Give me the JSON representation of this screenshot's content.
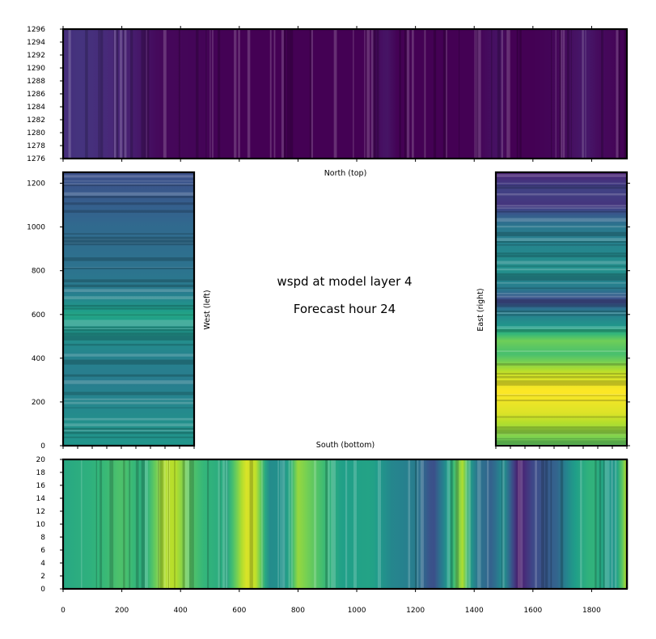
{
  "figure": {
    "title_line1": "wspd at model layer 4",
    "title_line2": "Forecast hour 24",
    "colormap": "viridis",
    "colormap_stops": [
      "#440154",
      "#482878",
      "#3e4a89",
      "#31688e",
      "#26828e",
      "#1f9e89",
      "#35b779",
      "#6ece58",
      "#b5de2b",
      "#fde725"
    ]
  },
  "chart_data": [
    {
      "type": "heatmap",
      "panel": "north",
      "caption": "North (top)",
      "x_range": [
        0,
        1920
      ],
      "y_range": [
        1276,
        1296
      ],
      "x_ticks": [
        0,
        200,
        400,
        600,
        800,
        1000,
        1200,
        1400,
        1600,
        1800
      ],
      "x_tick_labels_shown": false,
      "y_ticks": [
        1276,
        1278,
        1280,
        1282,
        1284,
        1286,
        1288,
        1290,
        1292,
        1294,
        1296
      ],
      "y_tick_labels": [
        "1276",
        "1278",
        "1280",
        "1282",
        "1284",
        "1286",
        "1288",
        "1290",
        "1292",
        "1294",
        "1296"
      ],
      "profile": [
        [
          0,
          0.13
        ],
        [
          60,
          0.15
        ],
        [
          140,
          0.12
        ],
        [
          220,
          0.09
        ],
        [
          280,
          0.05
        ],
        [
          330,
          0.02
        ],
        [
          600,
          0.0
        ],
        [
          1050,
          0.0
        ],
        [
          1100,
          0.06
        ],
        [
          1140,
          0.0
        ],
        [
          1400,
          0.0
        ],
        [
          1480,
          0.05
        ],
        [
          1520,
          0.0
        ],
        [
          1600,
          0.0
        ],
        [
          1700,
          0.02
        ],
        [
          1780,
          0.07
        ],
        [
          1820,
          0.03
        ],
        [
          1920,
          0.0
        ]
      ],
      "value_range": [
        0,
        1
      ]
    },
    {
      "type": "heatmap",
      "panel": "west",
      "caption": "West (left)",
      "x_range": [
        0,
        450
      ],
      "y_range": [
        0,
        1250
      ],
      "x_ticks": [
        0,
        50,
        100,
        150,
        200,
        250,
        300,
        350,
        400,
        450
      ],
      "x_tick_labels_shown": false,
      "y_ticks": [
        0,
        200,
        400,
        600,
        800,
        1000,
        1200
      ],
      "y_tick_labels": [
        "0",
        "200",
        "400",
        "600",
        "800",
        "1000",
        "1200"
      ],
      "profile": [
        [
          0,
          0.52
        ],
        [
          100,
          0.5
        ],
        [
          200,
          0.46
        ],
        [
          300,
          0.42
        ],
        [
          400,
          0.44
        ],
        [
          500,
          0.5
        ],
        [
          600,
          0.58
        ],
        [
          700,
          0.42
        ],
        [
          800,
          0.38
        ],
        [
          900,
          0.36
        ],
        [
          1000,
          0.34
        ],
        [
          1100,
          0.3
        ],
        [
          1200,
          0.26
        ],
        [
          1250,
          0.24
        ]
      ],
      "value_range": [
        0,
        1
      ]
    },
    {
      "type": "heatmap",
      "panel": "east",
      "caption": "East (right)",
      "x_range": [
        0,
        450
      ],
      "y_range": [
        0,
        1250
      ],
      "x_ticks": [
        0,
        50,
        100,
        150,
        200,
        250,
        300,
        350,
        400,
        450
      ],
      "x_tick_labels_shown": false,
      "y_ticks": [
        0,
        200,
        400,
        600,
        800,
        1000,
        1200
      ],
      "y_tick_labels_shown": false,
      "profile": [
        [
          0,
          0.75
        ],
        [
          100,
          0.88
        ],
        [
          150,
          0.95
        ],
        [
          250,
          1.0
        ],
        [
          330,
          0.92
        ],
        [
          380,
          0.8
        ],
        [
          420,
          0.7
        ],
        [
          480,
          0.78
        ],
        [
          550,
          0.52
        ],
        [
          620,
          0.4
        ],
        [
          660,
          0.2
        ],
        [
          720,
          0.42
        ],
        [
          800,
          0.5
        ],
        [
          900,
          0.46
        ],
        [
          1000,
          0.4
        ],
        [
          1050,
          0.3
        ],
        [
          1100,
          0.15
        ],
        [
          1180,
          0.2
        ],
        [
          1250,
          0.08
        ]
      ],
      "value_range": [
        0,
        1
      ]
    },
    {
      "type": "heatmap",
      "panel": "south",
      "caption": "South (bottom)",
      "x_range": [
        0,
        1920
      ],
      "y_range": [
        0,
        20
      ],
      "x_ticks": [
        0,
        200,
        400,
        600,
        800,
        1000,
        1200,
        1400,
        1600,
        1800
      ],
      "x_tick_labels": [
        "0",
        "200",
        "400",
        "600",
        "800",
        "1000",
        "1200",
        "1400",
        "1600",
        "1800"
      ],
      "y_ticks": [
        0,
        2,
        4,
        6,
        8,
        10,
        12,
        14,
        16,
        18,
        20
      ],
      "y_tick_labels": [
        "0",
        "2",
        "4",
        "6",
        "8",
        "10",
        "12",
        "14",
        "16",
        "18",
        "20"
      ],
      "profile": [
        [
          0,
          0.6
        ],
        [
          100,
          0.64
        ],
        [
          200,
          0.72
        ],
        [
          280,
          0.62
        ],
        [
          340,
          0.88
        ],
        [
          380,
          0.9
        ],
        [
          430,
          0.74
        ],
        [
          480,
          0.66
        ],
        [
          560,
          0.6
        ],
        [
          620,
          0.95
        ],
        [
          660,
          0.9
        ],
        [
          700,
          0.48
        ],
        [
          760,
          0.52
        ],
        [
          800,
          0.84
        ],
        [
          880,
          0.7
        ],
        [
          950,
          0.56
        ],
        [
          1050,
          0.58
        ],
        [
          1120,
          0.46
        ],
        [
          1200,
          0.42
        ],
        [
          1260,
          0.22
        ],
        [
          1300,
          0.48
        ],
        [
          1360,
          0.88
        ],
        [
          1400,
          0.42
        ],
        [
          1460,
          0.3
        ],
        [
          1500,
          0.52
        ],
        [
          1550,
          0.05
        ],
        [
          1600,
          0.22
        ],
        [
          1680,
          0.32
        ],
        [
          1740,
          0.55
        ],
        [
          1800,
          0.66
        ],
        [
          1880,
          0.5
        ],
        [
          1920,
          0.9
        ]
      ],
      "value_range": [
        0,
        1
      ]
    }
  ]
}
